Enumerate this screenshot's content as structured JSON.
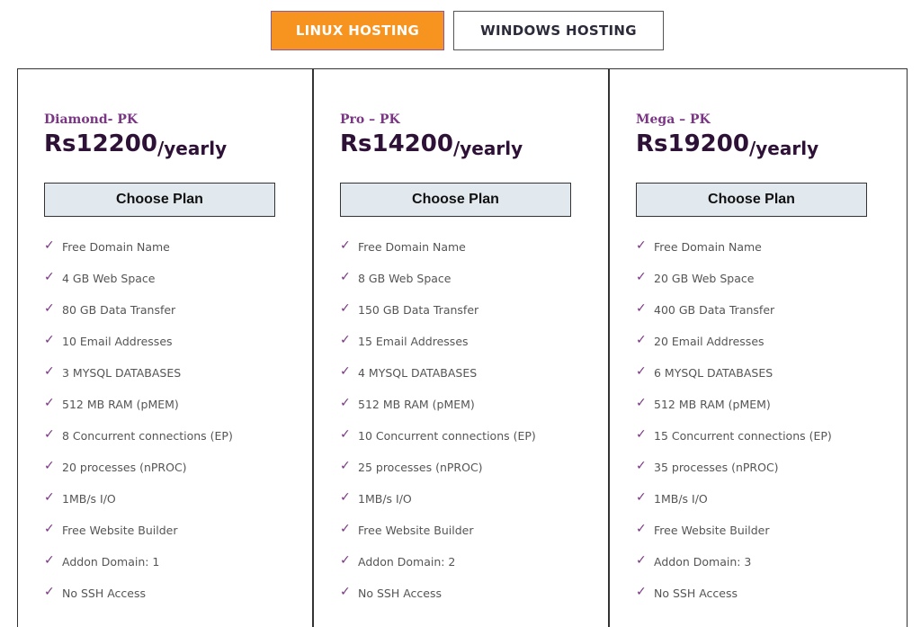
{
  "tabs": [
    {
      "label": "LINUX HOSTING",
      "active": true
    },
    {
      "label": "WINDOWS HOSTING",
      "active": false
    }
  ],
  "colors": {
    "accent": "#f7941f",
    "plan_name": "#7b3585",
    "price": "#2e1136",
    "button_bg": "#e1e8ee"
  },
  "check_icon": "✓",
  "plans": [
    {
      "name": "Diamond- PK",
      "amount": "Rs12200",
      "period": "/yearly",
      "button": "Choose Plan",
      "features": [
        "Free Domain Name",
        "4 GB Web Space",
        "80 GB Data Transfer",
        "10 Email Addresses",
        "3 MYSQL DATABASES",
        "512 MB RAM (pMEM)",
        "8 Concurrent connections (EP)",
        "20 processes (nPROC)",
        "1MB/s I/O",
        "Free Website Builder",
        "Addon Domain: 1",
        "No SSH Access"
      ]
    },
    {
      "name": "Pro – PK",
      "amount": "Rs14200",
      "period": "/yearly",
      "button": "Choose Plan",
      "features": [
        "Free Domain Name",
        "8 GB Web Space",
        "150 GB Data Transfer",
        "15 Email Addresses",
        "4 MYSQL DATABASES",
        "512 MB RAM (pMEM)",
        "10 Concurrent connections (EP)",
        "25 processes (nPROC)",
        "1MB/s I/O",
        "Free Website Builder",
        "Addon Domain: 2",
        "No SSH Access"
      ]
    },
    {
      "name": "Mega – PK",
      "amount": "Rs19200",
      "period": "/yearly",
      "button": "Choose Plan",
      "features": [
        "Free Domain Name",
        "20 GB Web Space",
        "400 GB Data Transfer",
        "20 Email Addresses",
        "6 MYSQL DATABASES",
        "512 MB RAM (pMEM)",
        "15 Concurrent connections (EP)",
        "35 processes (nPROC)",
        "1MB/s I/O",
        "Free Website Builder",
        "Addon Domain: 3",
        "No SSH Access"
      ]
    }
  ]
}
